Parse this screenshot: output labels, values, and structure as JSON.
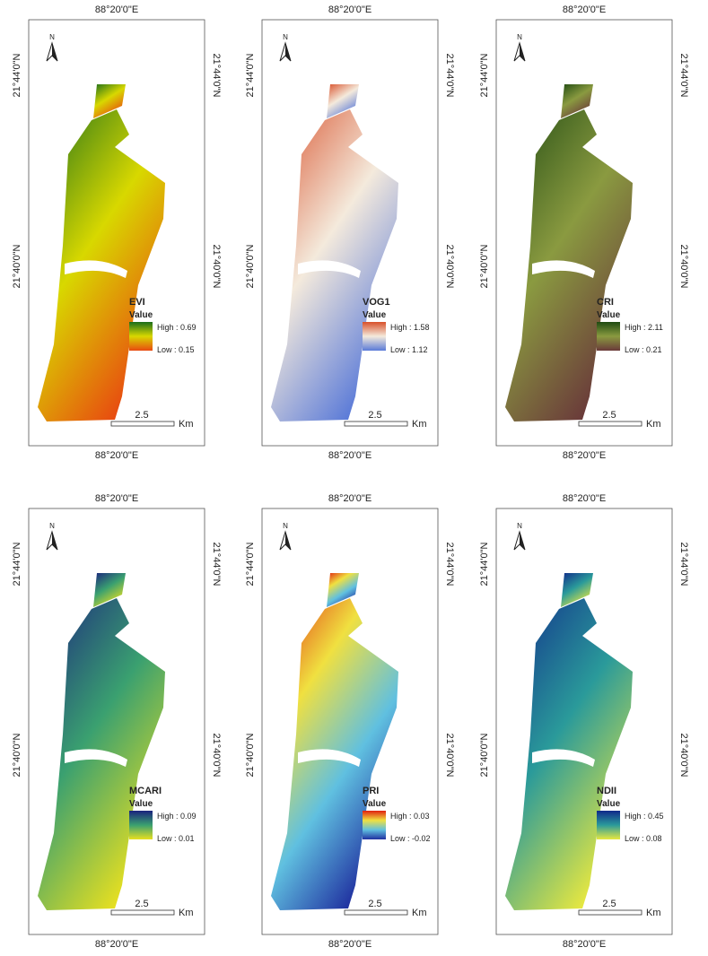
{
  "coords": {
    "top": "88°20'0\"E",
    "bottom": "88°20'0\"E",
    "lat_upper": "21°44'0\"N",
    "lat_lower": "21°40'0\"N"
  },
  "north": "N",
  "value_label": "Value",
  "scale": {
    "distance": "2.5",
    "unit": "Km"
  },
  "panels": [
    {
      "title": "EVI",
      "high": "High : 0.69",
      "low": "Low : 0.15",
      "ramp": [
        "#1b6e1b",
        "#d8d800",
        "#e84a10"
      ]
    },
    {
      "title": "VOG1",
      "high": "High : 1.58",
      "low": "Low : 1.12",
      "ramp": [
        "#d8502a",
        "#f4eadc",
        "#5a7ad8"
      ]
    },
    {
      "title": "CRI",
      "high": "High : 2.11",
      "low": "Low : 0.21",
      "ramp": [
        "#1f4a12",
        "#8a9a40",
        "#6a3a3a"
      ]
    },
    {
      "title": "MCARI",
      "high": "High : 0.09",
      "low": "Low : 0.01",
      "ramp": [
        "#1a237e",
        "#3aa070",
        "#e8e020"
      ]
    },
    {
      "title": "PRI",
      "high": "High : 0.03",
      "low": "Low : -0.02",
      "ramp": [
        "#e02010",
        "#f0e040",
        "#60c0e0",
        "#2030a0"
      ]
    },
    {
      "title": "NDII",
      "high": "High : 0.45",
      "low": "Low : 0.08",
      "ramp": [
        "#102a8a",
        "#2a9a9a",
        "#e8e840"
      ]
    }
  ]
}
